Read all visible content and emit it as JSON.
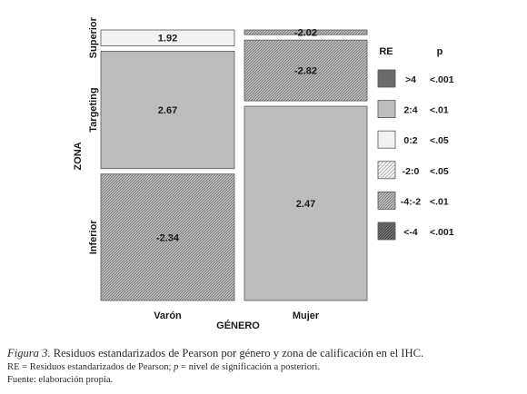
{
  "chart_data": {
    "type": "mosaic",
    "xlabel": "GÉNERO",
    "ylabel": "ZONA",
    "categories": [
      "Varón",
      "Mujer"
    ],
    "zones": [
      "Superior",
      "Targeting",
      "Inferior"
    ],
    "cells": [
      {
        "genero": "Varón",
        "zona": "Superior",
        "residual": 1.92,
        "label": "1.92",
        "shade": "0:2"
      },
      {
        "genero": "Varón",
        "zona": "Targeting",
        "residual": 2.67,
        "label": "2.67",
        "shade": "2:4"
      },
      {
        "genero": "Varón",
        "zona": "Inferior",
        "residual": -2.34,
        "label": "-2.34",
        "shade": "-4:-2"
      },
      {
        "genero": "Mujer",
        "zona": "Superior",
        "residual": -2.02,
        "label": "-2.02",
        "shade": "-4:-2"
      },
      {
        "genero": "Mujer",
        "zona": "Targeting",
        "residual": -2.82,
        "label": "-2.82",
        "shade": "-4:-2"
      },
      {
        "genero": "Mujer",
        "zona": "Inferior",
        "residual": 2.47,
        "label": "2.47",
        "shade": "2:4"
      }
    ],
    "proportions": {
      "genero": {
        "Varón": 0.5,
        "Mujer": 0.5
      },
      "zona_by_genero": {
        "Varón": {
          "Superior": 0.061,
          "Targeting": 0.452,
          "Inferior": 0.487
        },
        "Mujer": {
          "Superior": 0.018,
          "Targeting": 0.234,
          "Inferior": 0.748
        }
      }
    },
    "legend": {
      "headers": {
        "re": "RE",
        "p": "p"
      },
      "position": "right",
      "items": [
        {
          "range": ">4",
          "p": "<.001",
          "style": "solid-dark"
        },
        {
          "range": "2:4",
          "p": "<.01",
          "style": "solid-mid"
        },
        {
          "range": "0:2",
          "p": "<.05",
          "style": "solid-light"
        },
        {
          "range": "-2:0",
          "p": "<.05",
          "style": "hatch-light"
        },
        {
          "range": "-4:-2",
          "p": "<.01",
          "style": "hatch-mid"
        },
        {
          "range": "<-4",
          "p": "<.001",
          "style": "hatch-dark"
        }
      ]
    }
  },
  "caption": {
    "figure_label": "Figura 3.",
    "figure_text": "Residuos estandarizados de Pearson por género y zona de calificación en el IHC.",
    "notes_a": "RE = Residuos estandarizados de Pearson; ",
    "notes_p": "p",
    "notes_b": " = nivel de significación a posteriori.",
    "source": "Fuente: elaboración propia."
  },
  "colors": {
    "solid_dark": "#6b6b6b",
    "solid_mid": "#bdbdbd",
    "solid_light": "#f2f2f2",
    "hatch_light_bg": "#f5f5f5",
    "hatch_mid_bg": "#c8c8c8",
    "hatch_dark_bg": "#7a7a7a",
    "border": "#555555",
    "text": "#1a1a1a"
  }
}
